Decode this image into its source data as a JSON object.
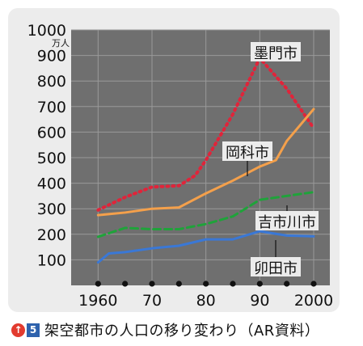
{
  "caption": {
    "arrow_icon": "up-arrow-circle-icon",
    "number": "5",
    "text": "架空都市の人口の移り変わり（AR資料）"
  },
  "chart_data": {
    "type": "line",
    "ylabel": "万人",
    "ylim": [
      0,
      1000
    ],
    "yticks": [
      100,
      200,
      300,
      400,
      500,
      600,
      700,
      800,
      900,
      1000
    ],
    "xlim": [
      1955,
      2003
    ],
    "xticks": [
      {
        "value": 1960,
        "label": "1960"
      },
      {
        "value": 1970,
        "label": "70"
      },
      {
        "value": 1980,
        "label": "80"
      },
      {
        "value": 1990,
        "label": "90"
      },
      {
        "value": 2000,
        "label": "2000"
      }
    ],
    "marker_years": [
      1960,
      1965,
      1970,
      1975,
      1980,
      1985,
      1990,
      1995,
      2000
    ],
    "series": [
      {
        "name": "墨門市",
        "color": "#e0243a",
        "style": "dotted",
        "x": [
          1960,
          1965,
          1970,
          1975,
          1978,
          1980,
          1985,
          1990,
          1995,
          2000
        ],
        "y": [
          295,
          345,
          385,
          390,
          430,
          490,
          670,
          890,
          770,
          615
        ]
      },
      {
        "name": "岡科市",
        "color": "#f4a04b",
        "style": "solid",
        "x": [
          1960,
          1965,
          1970,
          1975,
          1980,
          1985,
          1990,
          1993,
          1995,
          2000
        ],
        "y": [
          275,
          285,
          300,
          305,
          360,
          410,
          465,
          490,
          565,
          690
        ]
      },
      {
        "name": "吉市川市",
        "color": "#1fa33a",
        "style": "dashed",
        "x": [
          1960,
          1965,
          1970,
          1975,
          1980,
          1985,
          1990,
          1995,
          2000
        ],
        "y": [
          190,
          225,
          220,
          220,
          240,
          270,
          335,
          350,
          365
        ]
      },
      {
        "name": "卯田市",
        "color": "#3a78d6",
        "style": "solid",
        "x": [
          1960,
          1962,
          1965,
          1970,
          1975,
          1980,
          1985,
          1990,
          1995,
          2000
        ],
        "y": [
          90,
          125,
          130,
          145,
          155,
          180,
          180,
          212,
          195,
          192
        ]
      }
    ]
  }
}
